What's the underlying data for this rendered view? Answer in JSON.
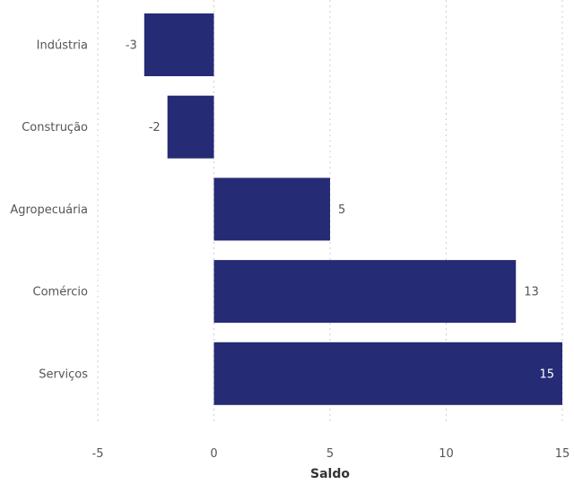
{
  "chart_data": {
    "type": "bar",
    "orientation": "horizontal",
    "categories": [
      "Indústria",
      "Construção",
      "Agropecuária",
      "Comércio",
      "Serviços"
    ],
    "values": [
      -3,
      -2,
      5,
      13,
      15
    ],
    "data_labels": [
      "-3",
      "-2",
      "5",
      "13",
      "15"
    ],
    "xlabel": "Saldo",
    "ylabel": "",
    "xlim": [
      -5,
      15
    ],
    "xticks": [
      -5,
      0,
      5,
      10,
      15
    ],
    "xtick_labels": [
      "-5",
      "0",
      "5",
      "10",
      "15"
    ],
    "grid": "vertical-dotted",
    "bar_color": "#262b75"
  }
}
